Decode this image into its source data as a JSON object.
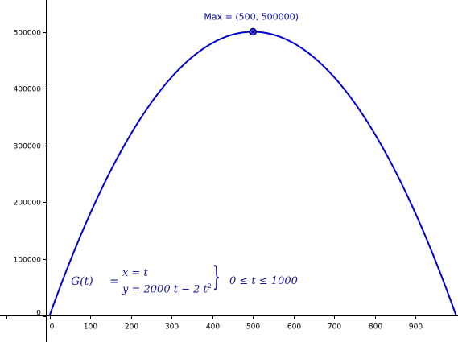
{
  "chart_data": {
    "type": "line",
    "title": "",
    "xlabel": "",
    "ylabel": "",
    "xlim": [
      -5,
      1000
    ],
    "ylim": [
      -10000,
      540000
    ],
    "x_ticks": [
      0,
      100,
      200,
      300,
      400,
      500,
      600,
      700,
      800,
      900
    ],
    "y_ticks": [
      0,
      100000,
      200000,
      300000,
      400000,
      500000
    ],
    "x_tick_labels": [
      "0",
      "100",
      "200",
      "300",
      "400",
      "500",
      "600",
      "700",
      "800",
      "900"
    ],
    "y_tick_labels": [
      "0",
      "100000",
      "200000",
      "300000",
      "400000",
      "500000"
    ],
    "grid": false,
    "series": [
      {
        "function": "y = 2000 t - 2 t^2",
        "color": "#0000cc",
        "x": [
          0,
          50,
          100,
          150,
          200,
          250,
          300,
          350,
          400,
          450,
          500,
          550,
          600,
          650,
          700,
          750,
          800,
          850,
          900,
          950,
          1000
        ],
        "values": [
          0,
          95000,
          180000,
          255000,
          320000,
          375000,
          420000,
          455000,
          480000,
          495000,
          500000,
          495000,
          480000,
          455000,
          420000,
          375000,
          320000,
          255000,
          180000,
          95000,
          0
        ]
      }
    ],
    "annotations": [
      {
        "label": "Max = (500, 500000)",
        "x": 500,
        "y": 500000
      }
    ]
  },
  "formula": {
    "lhs": "G(t)",
    "eq": "=",
    "line1": "x = t",
    "line2": "y = 2000 t − 2 t",
    "exponent": "2",
    "brace": "}",
    "domain": "0 ≤ t ≤ 1000"
  }
}
